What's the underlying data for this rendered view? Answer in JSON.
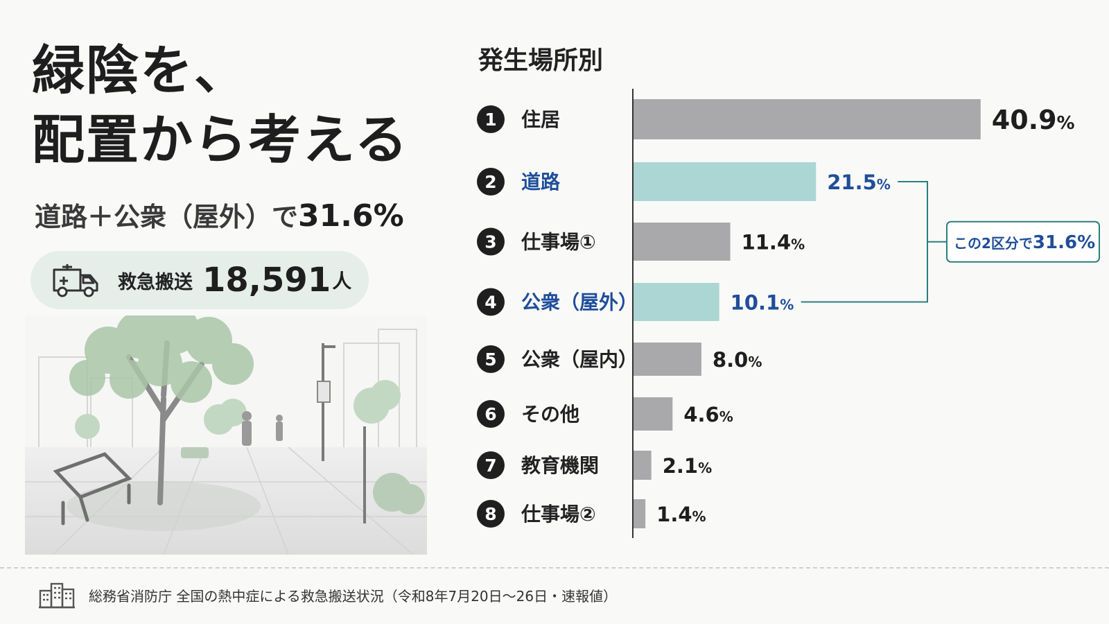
{
  "headline": {
    "line1": "緑陰を、",
    "line2": "配置から考える"
  },
  "subline": {
    "prefix": "道路＋公衆（屋外）で",
    "value": "31.6%"
  },
  "ambulance": {
    "label": "救急搬送",
    "count": "18,591",
    "unit": "人"
  },
  "chart_title": "発生場所別",
  "chart_data": {
    "type": "bar",
    "orientation": "horizontal",
    "title": "発生場所別",
    "categories": [
      "住居",
      "道路",
      "仕事場①",
      "公衆（屋外）",
      "公衆（屋内）",
      "その他",
      "教育機関",
      "仕事場②"
    ],
    "ranks": [
      "1",
      "2",
      "3",
      "4",
      "5",
      "6",
      "7",
      "8"
    ],
    "values": [
      40.9,
      21.5,
      11.4,
      10.1,
      8.0,
      4.6,
      2.1,
      1.4
    ],
    "value_labels": [
      "40.9",
      "21.5",
      "11.4",
      "10.1",
      "8.0",
      "4.6",
      "2.1",
      "1.4"
    ],
    "unit": "%",
    "highlighted": [
      1,
      3
    ],
    "colors": {
      "default": "#a9a9ab",
      "highlight": "#abd6d3",
      "highlight_text": "#1f4e9a"
    },
    "annotation": {
      "prefix": "この2区分で",
      "value": "31.6%"
    },
    "xlim": [
      0,
      41
    ]
  },
  "source": {
    "text": "総務省消防庁 全国の熱中症による救急搬送状況（令和8年7月20日～26日・速報値）"
  }
}
